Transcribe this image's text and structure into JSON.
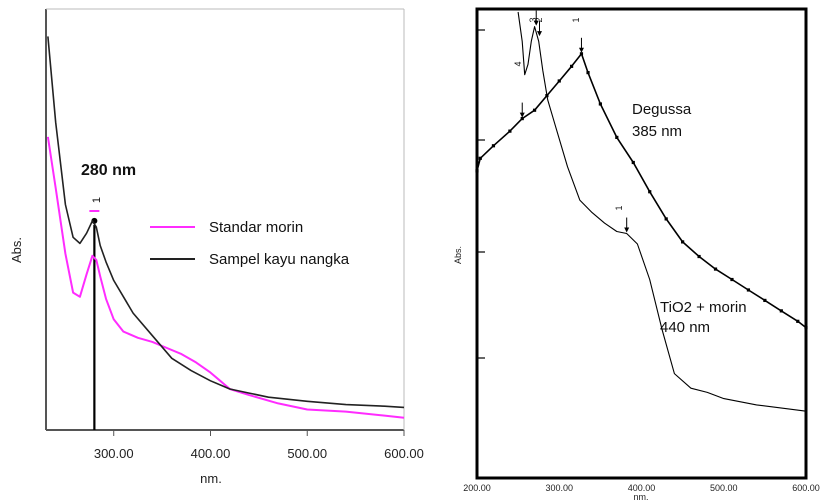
{
  "chart_data": [
    {
      "type": "line",
      "title": "",
      "xlabel": "nm.",
      "ylabel": "Abs.",
      "xlim": [
        230,
        600
      ],
      "ylim": [
        0,
        1
      ],
      "xticks": [
        "300.00",
        "400.00",
        "500.00",
        "600.00"
      ],
      "grid": false,
      "legend_position": "middle-right",
      "peak_annotation": "280 nm",
      "peak_marker_label": "1",
      "series": [
        {
          "name": "Standar morin",
          "color": "#ff2cff",
          "x": [
            232,
            240,
            250,
            258,
            265,
            272,
            278,
            282,
            286,
            292,
            300,
            310,
            325,
            340,
            355,
            370,
            385,
            400,
            410,
            420,
            440,
            470,
            500,
            540,
            580,
            600
          ],
          "y": [
            0.715,
            0.59,
            0.43,
            0.335,
            0.325,
            0.38,
            0.425,
            0.415,
            0.375,
            0.32,
            0.27,
            0.24,
            0.225,
            0.215,
            0.2,
            0.185,
            0.165,
            0.14,
            0.12,
            0.1,
            0.085,
            0.065,
            0.05,
            0.045,
            0.035,
            0.03
          ]
        },
        {
          "name": "Sampel kayu nangka",
          "color": "#222222",
          "x": [
            232,
            240,
            250,
            258,
            265,
            272,
            278,
            282,
            286,
            292,
            300,
            320,
            340,
            360,
            380,
            400,
            420,
            440,
            460,
            500,
            540,
            580,
            600
          ],
          "y": [
            0.96,
            0.75,
            0.55,
            0.47,
            0.455,
            0.48,
            0.51,
            0.495,
            0.45,
            0.41,
            0.365,
            0.285,
            0.23,
            0.175,
            0.145,
            0.12,
            0.1,
            0.09,
            0.08,
            0.07,
            0.062,
            0.058,
            0.055
          ]
        }
      ]
    },
    {
      "type": "line",
      "title": "",
      "xlabel": "nm.",
      "ylabel": "Abs.",
      "xlim": [
        200,
        600
      ],
      "ylim": [
        0,
        1
      ],
      "xticks": [
        "200.00",
        "300.00",
        "400.00",
        "500.00",
        "600.00"
      ],
      "grid": false,
      "marker_labels": [
        "4",
        "3",
        "2",
        "1"
      ],
      "series": [
        {
          "name": "Degussa",
          "annotation": "385 nm",
          "color": "#000000",
          "x": [
            200,
            204,
            220,
            240,
            255,
            270,
            285,
            300,
            315,
            327,
            335,
            350,
            370,
            390,
            410,
            430,
            450,
            470,
            490,
            510,
            530,
            550,
            570,
            590,
            600
          ],
          "y": [
            0.62,
            0.65,
            0.68,
            0.715,
            0.745,
            0.765,
            0.8,
            0.835,
            0.87,
            0.9,
            0.855,
            0.78,
            0.7,
            0.64,
            0.57,
            0.505,
            0.45,
            0.415,
            0.385,
            0.36,
            0.335,
            0.31,
            0.285,
            0.26,
            0.245
          ]
        },
        {
          "name": "TiO2 + morin",
          "annotation": "440 nm",
          "color": "#000000",
          "x": [
            250,
            255,
            258,
            262,
            266,
            270,
            275,
            280,
            286,
            295,
            310,
            325,
            340,
            355,
            370,
            382,
            395,
            410,
            425,
            440,
            460,
            480,
            500,
            540,
            580,
            600
          ],
          "y": [
            1.0,
            0.93,
            0.85,
            0.875,
            0.93,
            0.965,
            0.93,
            0.86,
            0.79,
            0.73,
            0.63,
            0.55,
            0.52,
            0.495,
            0.475,
            0.47,
            0.445,
            0.36,
            0.24,
            0.135,
            0.1,
            0.09,
            0.075,
            0.06,
            0.05,
            0.045
          ]
        }
      ]
    }
  ]
}
